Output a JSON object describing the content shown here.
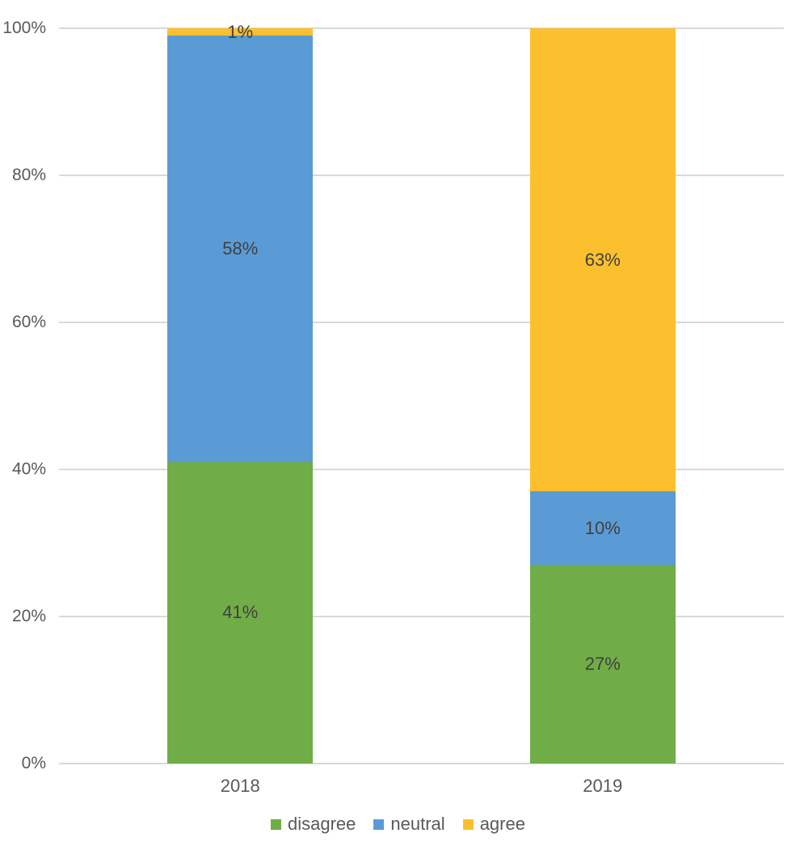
{
  "chart_data": {
    "type": "bar",
    "variant": "stacked-100-percent",
    "title": "",
    "xlabel": "",
    "ylabel": "",
    "categories": [
      "2018",
      "2019"
    ],
    "series": [
      {
        "name": "disagree",
        "color": "#70AD47",
        "values": [
          41,
          27
        ],
        "labels": [
          "41%",
          "27%"
        ]
      },
      {
        "name": "neutral",
        "color": "#5B9BD5",
        "values": [
          58,
          10
        ],
        "labels": [
          "58%",
          "10%"
        ]
      },
      {
        "name": "agree",
        "color": "#FCBF2D",
        "values": [
          1,
          63
        ],
        "labels": [
          "1%",
          "63%"
        ]
      }
    ],
    "y_axis": {
      "range": [
        0,
        100
      ],
      "ticks": [
        {
          "value": 0,
          "label": "0%"
        },
        {
          "value": 20,
          "label": "20%"
        },
        {
          "value": 40,
          "label": "40%"
        },
        {
          "value": 60,
          "label": "60%"
        },
        {
          "value": 80,
          "label": "80%"
        },
        {
          "value": 100,
          "label": "100%"
        }
      ]
    },
    "grid": true,
    "legend_position": "bottom",
    "colors": {
      "gridline": "#D9D9D9",
      "axis_text": "#595959",
      "data_label_text": "#404040",
      "legend_text": "#595959",
      "background": "#FFFFFF"
    }
  }
}
